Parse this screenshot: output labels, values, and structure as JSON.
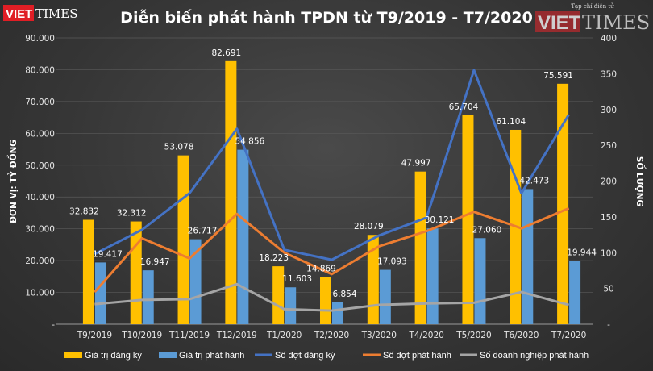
{
  "chart_data": {
    "type": "bar",
    "title": "Diễn biến phát hành TPDN từ T9/2019 - T7/2020",
    "categories": [
      "T9/2019",
      "T10/2019",
      "T11/2019",
      "T12/2019",
      "T1/2020",
      "T2/2020",
      "T3/2020",
      "T4/2020",
      "T5/2020",
      "T6/2020",
      "T7/2020"
    ],
    "ylabel_left": "ĐƠN VỊ: TỶ ĐỒNG",
    "ylabel_right": "SỐ LƯỢNG",
    "ylim_left": [
      0,
      90000
    ],
    "ylim_right": [
      0,
      400
    ],
    "left_ticks": [
      "-",
      "10.000",
      "20.000",
      "30.000",
      "40.000",
      "50.000",
      "60.000",
      "70.000",
      "80.000",
      "90.000"
    ],
    "right_ticks": [
      "-",
      "50",
      "100",
      "150",
      "200",
      "250",
      "300",
      "350",
      "400"
    ],
    "grid": true,
    "legend_position": "bottom",
    "bar_series": [
      {
        "name": "Giá trị đăng ký",
        "color": "#ffc000",
        "values": [
          32832,
          32312,
          53078,
          82691,
          18223,
          14869,
          28079,
          47997,
          65704,
          61104,
          75591
        ],
        "labels": [
          "32.832",
          "32.312",
          "53.078",
          "82.691",
          "18.223",
          "14.869",
          "28.079",
          "47.997",
          "65.704",
          "61.104",
          "75.591"
        ]
      },
      {
        "name": "Giá trị phát hành",
        "color": "#5b9bd5",
        "values": [
          19417,
          16947,
          26717,
          54856,
          11603,
          6854,
          17093,
          30121,
          27060,
          42473,
          19944
        ],
        "labels": [
          "19.417",
          "16.947",
          "26.717",
          "54.856",
          "11.603",
          "6.854",
          "17.093",
          "30.121",
          "27.060",
          "42.473",
          "19.944"
        ]
      }
    ],
    "line_series": [
      {
        "name": "Số đợt đăng ký",
        "color": "#4472c4",
        "values": [
          98,
          132,
          183,
          273,
          104,
          90,
          124,
          149,
          355,
          183,
          293
        ]
      },
      {
        "name": "Số đợt phát hành",
        "color": "#ed7d31",
        "values": [
          45,
          120,
          92,
          154,
          100,
          70,
          109,
          130,
          157,
          134,
          162
        ]
      },
      {
        "name": "Số doanh nghiệp phát hành",
        "color": "#a5a5a5",
        "values": [
          28,
          34,
          35,
          56,
          21,
          19,
          27,
          29,
          30,
          45,
          27
        ]
      }
    ]
  },
  "watermark": {
    "brand_red": "VIET",
    "brand_gray": "TIMES",
    "tagline": "Tạp chí điện tử"
  }
}
